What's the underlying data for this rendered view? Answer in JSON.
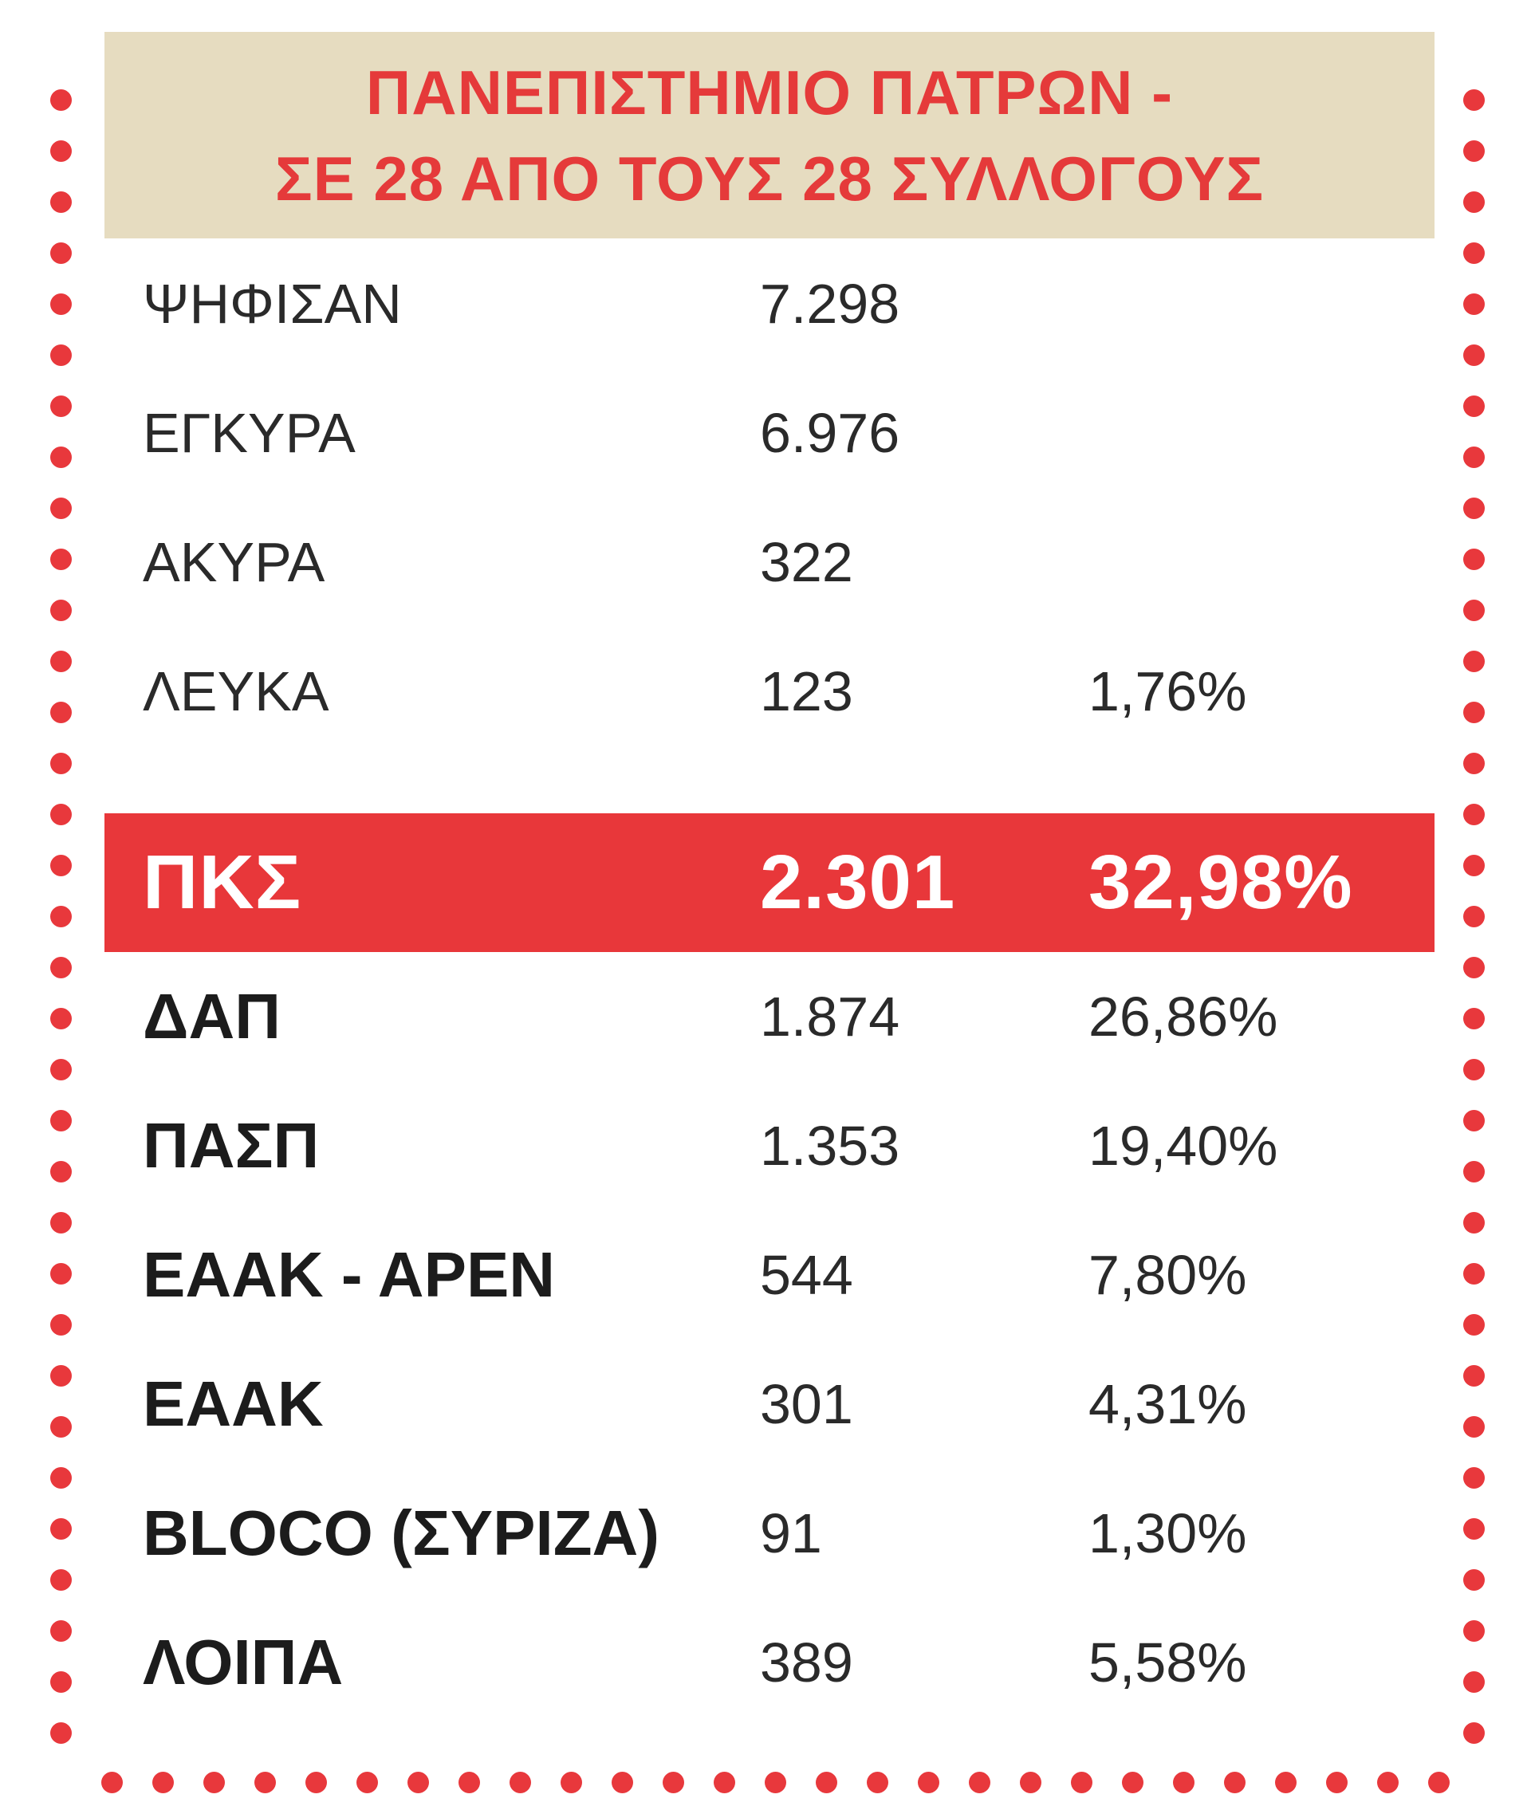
{
  "header": {
    "line1": "ΠΑΝΕΠΙΣΤΗΜΙΟ ΠΑΤΡΩΝ -",
    "line2": "ΣΕ 28 ΑΠΟ ΤΟΥΣ 28 ΣΥΛΛΟΓΟΥΣ"
  },
  "stats": [
    {
      "label": "ΨΗΦΙΣΑΝ",
      "value": "7.298",
      "pct": ""
    },
    {
      "label": "ΕΓΚΥΡΑ",
      "value": "6.976",
      "pct": ""
    },
    {
      "label": "ΑΚΥΡΑ",
      "value": "322",
      "pct": ""
    },
    {
      "label": "ΛΕΥΚΑ",
      "value": "123",
      "pct": "1,76%"
    }
  ],
  "results": [
    {
      "label": "ΠΚΣ",
      "value": "2.301",
      "pct": "32,98%"
    },
    {
      "label": "ΔΑΠ",
      "value": "1.874",
      "pct": "26,86%"
    },
    {
      "label": "ΠΑΣΠ",
      "value": "1.353",
      "pct": "19,40%"
    },
    {
      "label": "ΕΑΑΚ - ΑΡΕΝ",
      "value": "544",
      "pct": "7,80%"
    },
    {
      "label": "ΕΑΑΚ",
      "value": "301",
      "pct": "4,31%"
    },
    {
      "label": "BLOCO (ΣΥΡΙΖΑ)",
      "value": "91",
      "pct": "1,30%"
    },
    {
      "label": "ΛΟΙΠΑ",
      "value": "389",
      "pct": "5,58%"
    }
  ],
  "colors": {
    "accent_red": "#e8373a",
    "header_bg": "#e6dcc0",
    "text_dark": "#2a2a2a"
  }
}
